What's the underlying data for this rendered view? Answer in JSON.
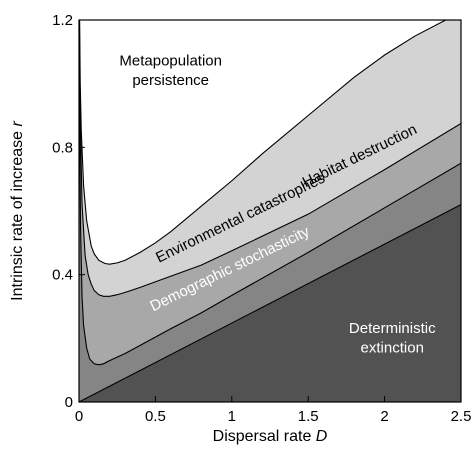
{
  "chart_data": {
    "type": "area",
    "xlabel": "Dispersal rate",
    "xlabel_var": "D",
    "ylabel": "Intrinsic rate of increase",
    "ylabel_var": "r",
    "xlim": [
      0,
      2.5
    ],
    "ylim": [
      0,
      1.2
    ],
    "xticks": [
      "0",
      "0.5",
      "1",
      "1.5",
      "2",
      "2.5"
    ],
    "yticks": [
      "0",
      "0.4",
      "0.8",
      "1.2"
    ],
    "grid": false,
    "boundaries": [
      {
        "name": "Demographic stochasticity",
        "color": "#858585",
        "x": [
          0,
          2.5
        ],
        "y": [
          0,
          0.62
        ]
      },
      {
        "name": "Environmental catastrophes",
        "color": "#a8a8a8",
        "x": [
          0.002,
          0.005,
          0.01,
          0.02,
          0.03,
          0.05,
          0.07,
          0.1,
          0.13,
          0.16,
          0.2,
          0.3,
          0.4,
          0.6,
          0.8,
          1.0,
          1.5,
          2.0,
          2.5
        ],
        "y": [
          1.2,
          0.85,
          0.55,
          0.33,
          0.24,
          0.17,
          0.135,
          0.12,
          0.117,
          0.12,
          0.13,
          0.152,
          0.178,
          0.23,
          0.28,
          0.335,
          0.47,
          0.61,
          0.75
        ]
      },
      {
        "name": "Habitat destruction",
        "color": "#d3d3d3",
        "x": [
          0.003,
          0.006,
          0.01,
          0.02,
          0.04,
          0.06,
          0.08,
          0.1,
          0.13,
          0.16,
          0.2,
          0.25,
          0.3,
          0.4,
          0.6,
          0.8,
          1.0,
          1.5,
          2.0,
          2.5
        ],
        "y": [
          1.2,
          1.0,
          0.85,
          0.62,
          0.46,
          0.4,
          0.37,
          0.35,
          0.337,
          0.332,
          0.332,
          0.337,
          0.344,
          0.36,
          0.395,
          0.43,
          0.475,
          0.59,
          0.73,
          0.875
        ]
      },
      {
        "name": "Metapopulation persistence",
        "color": "#ffffff",
        "x": [
          0.004,
          0.008,
          0.015,
          0.03,
          0.05,
          0.08,
          0.1,
          0.13,
          0.17,
          0.2,
          0.25,
          0.3,
          0.4,
          0.5,
          0.6,
          0.7,
          0.8,
          1.0,
          1.2,
          1.5,
          1.8,
          2.0,
          2.2,
          2.4
        ],
        "y": [
          1.2,
          1.0,
          0.85,
          0.68,
          0.57,
          0.49,
          0.465,
          0.445,
          0.435,
          0.433,
          0.437,
          0.445,
          0.47,
          0.5,
          0.535,
          0.575,
          0.615,
          0.695,
          0.78,
          0.9,
          1.02,
          1.09,
          1.15,
          1.2
        ]
      }
    ],
    "base_color": "#525252",
    "annotations": [
      {
        "text": "Metapopulation persistence",
        "line1": "Metapopulation",
        "line2": "persistence",
        "x": 0.6,
        "y": 1.04,
        "angle": 0,
        "color": "#000000"
      },
      {
        "text": "Habitat destruction",
        "x": 1.85,
        "y": 0.76,
        "angle": -26,
        "color": "#000000"
      },
      {
        "text": "Environmental catastrophes",
        "x": 1.07,
        "y": 0.565,
        "angle": -26,
        "color": "#000000"
      },
      {
        "text": "Demographic stochasticity",
        "x": 1.0,
        "y": 0.405,
        "angle": -26,
        "color": "#ffffff"
      },
      {
        "text": "Deterministic extinction",
        "line1": "Deterministic",
        "line2": "extinction",
        "x": 2.05,
        "y": 0.2,
        "angle": 0,
        "color": "#ffffff"
      }
    ]
  }
}
